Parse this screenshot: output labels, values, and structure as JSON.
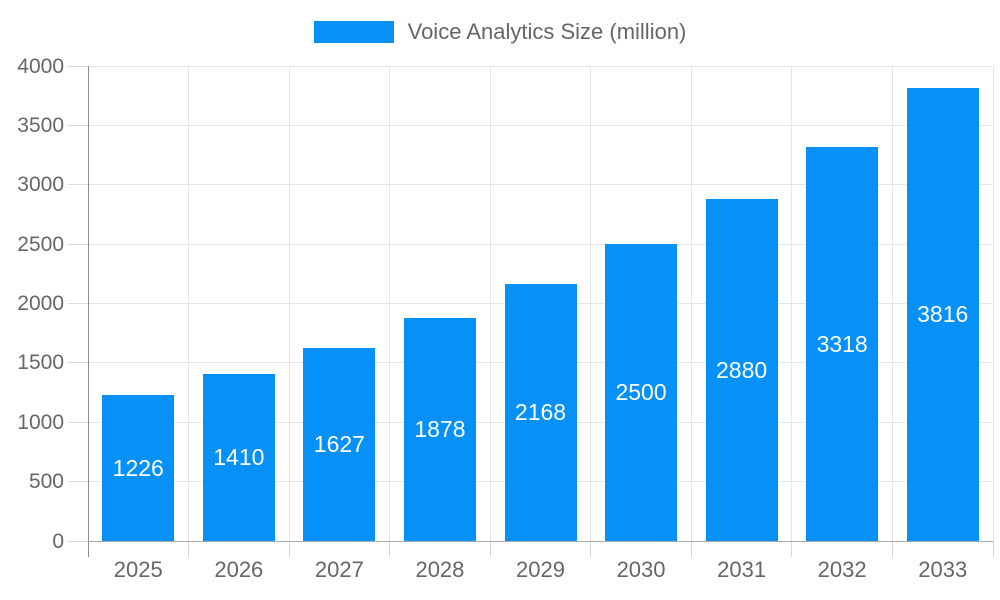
{
  "chart_data": {
    "type": "bar",
    "title": "Voice Analytics Size (million)",
    "categories": [
      "2025",
      "2026",
      "2027",
      "2028",
      "2029",
      "2030",
      "2031",
      "2032",
      "2033"
    ],
    "series": [
      {
        "name": "Voice Analytics Size (million)",
        "values": [
          1226,
          1410,
          1627,
          1878,
          2168,
          2500,
          2880,
          3318,
          3816
        ]
      }
    ],
    "xlabel": "",
    "ylabel": "",
    "ylim": [
      0,
      4000
    ],
    "yticks": [
      0,
      500,
      1000,
      1500,
      2000,
      2500,
      3000,
      3500,
      4000
    ],
    "grid": true,
    "legend_position": "top-center",
    "data_label_position": "inside-center"
  },
  "legend": {
    "label": "Voice Analytics Size (million)"
  },
  "colors": {
    "bar": "#0591f8",
    "background": "#ffffff",
    "gridline": "#e6e6e6",
    "y_axis_line": "#8f8f8f",
    "x_axis_line": "#ababab",
    "tick": "#d9d9d9",
    "tick_label": "#666666",
    "legend_text": "#666666",
    "data_label": "#ffffff"
  }
}
